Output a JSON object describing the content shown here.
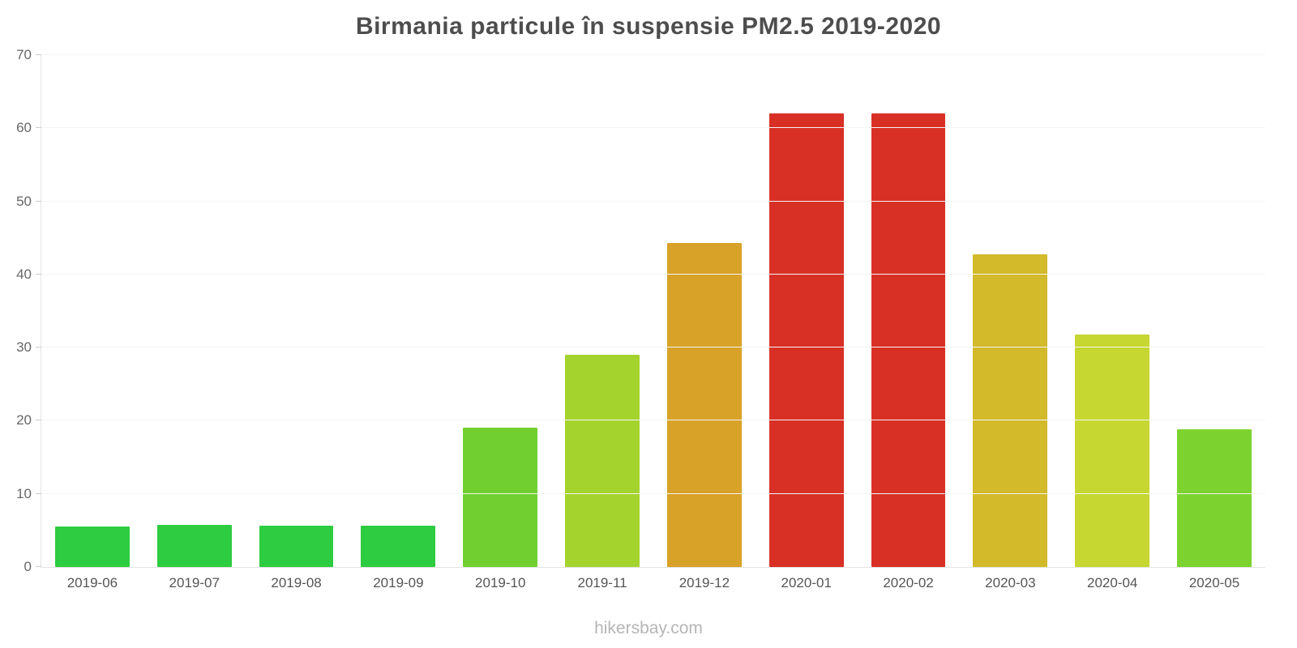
{
  "chart_data": {
    "type": "bar",
    "title": "Birmania particule în suspensie PM2.5 2019-2020",
    "categories": [
      "2019-06",
      "2019-07",
      "2019-08",
      "2019-09",
      "2019-10",
      "2019-11",
      "2019-12",
      "2020-01",
      "2020-02",
      "2020-03",
      "2020-04",
      "2020-05"
    ],
    "values": [
      5.5,
      5.8,
      5.6,
      5.6,
      19.0,
      29.0,
      44.3,
      62.0,
      62.0,
      42.8,
      31.8,
      18.8
    ],
    "bar_colors": [
      "#2ecc40",
      "#2ecc40",
      "#2ecc40",
      "#2ecc40",
      "#71d02f",
      "#a4d32e",
      "#d8a128",
      "#d93026",
      "#d93026",
      "#d2ba2a",
      "#c5d730",
      "#7cd32f"
    ],
    "xlabel": "",
    "ylabel": "",
    "ylim": [
      0,
      70
    ],
    "yticks": [
      0,
      10,
      20,
      30,
      40,
      50,
      60,
      70
    ],
    "grid": true,
    "legend": "none"
  },
  "footer": {
    "text": "hikersbay.com"
  },
  "colors": {
    "title_text": "#4d4d4d",
    "axis_label_text": "#666666",
    "x_label_text": "#555555",
    "gridline": "#f4f4f4",
    "axis_line": "#e3e3e3",
    "watermark_text": "#b5b5b5"
  }
}
